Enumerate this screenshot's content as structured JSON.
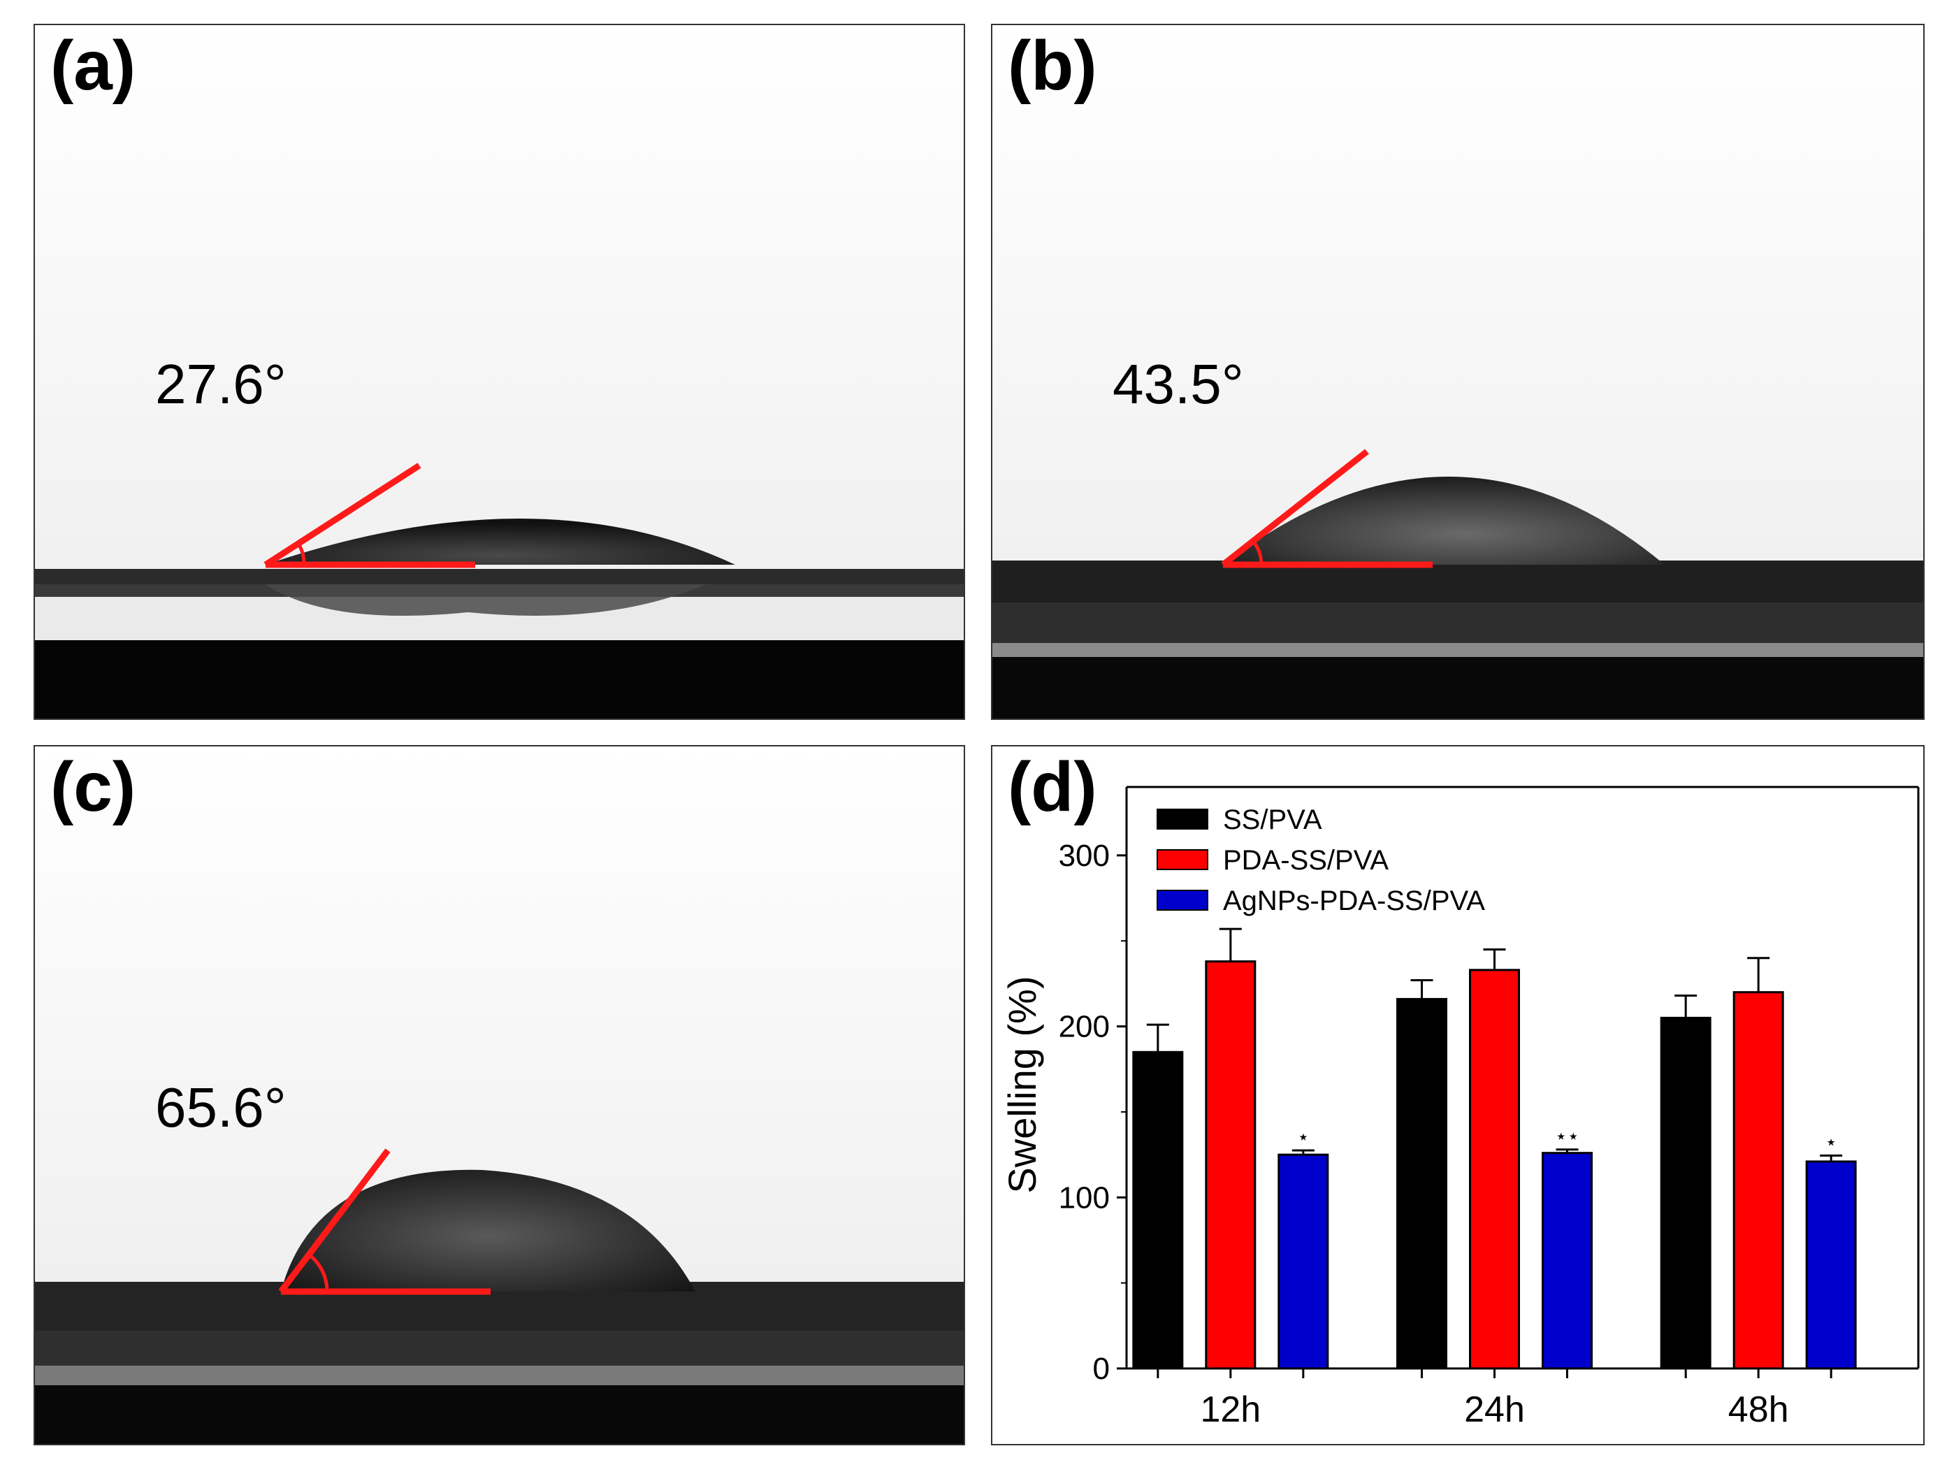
{
  "panels": {
    "a": {
      "letter": "(a)",
      "angle": "27.6°"
    },
    "b": {
      "letter": "(b)",
      "angle": "43.5°"
    },
    "c": {
      "letter": "(c)",
      "angle": "65.6°"
    },
    "d": {
      "letter": "(d)"
    }
  },
  "colors": {
    "angle_line": "#ff1a1a",
    "ss_pva": "#000000",
    "pda_ss_pva": "#ff0000",
    "agnps_pda_ss_pva": "#0000cc"
  },
  "chart_data": {
    "type": "bar",
    "categories": [
      "12h",
      "24h",
      "48h"
    ],
    "xlabel": "",
    "ylabel": "Swelling (%)",
    "ylim": [
      0,
      340
    ],
    "yticks": [
      0,
      100,
      200,
      300
    ],
    "legend_position": "top-left",
    "series": [
      {
        "name": "SS/PVA",
        "color": "#000000",
        "values": [
          185,
          216,
          205
        ],
        "errors": [
          16,
          11,
          13
        ],
        "markers": [
          "",
          "",
          ""
        ]
      },
      {
        "name": "PDA-SS/PVA",
        "color": "#ff0000",
        "values": [
          238,
          233,
          220
        ],
        "errors": [
          19,
          12,
          20
        ],
        "markers": [
          "",
          "",
          ""
        ]
      },
      {
        "name": "AgNPs-PDA-SS/PVA",
        "color": "#0000cc",
        "values": [
          125,
          126,
          121
        ],
        "errors": [
          2.5,
          2,
          3.5
        ],
        "markers": [
          "⋆",
          "⋆⋆",
          "⋆"
        ]
      }
    ]
  }
}
